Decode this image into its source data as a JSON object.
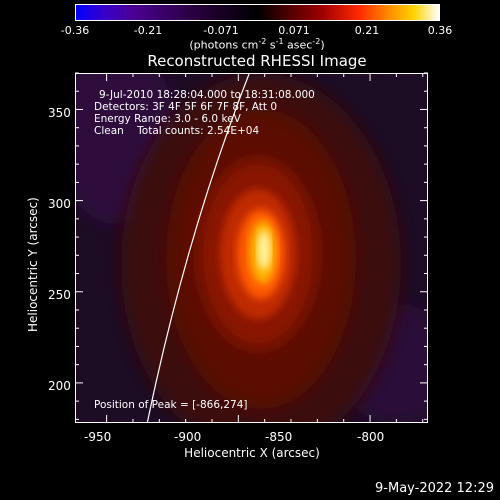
{
  "colorbar": {
    "ticks": [
      "-0.36",
      "-0.21",
      "-0.071",
      "0.071",
      "0.21",
      "0.36"
    ],
    "units_prefix": "(photons cm",
    "units_exp1": "-2",
    "units_mid": " s",
    "units_exp2": "-1",
    "units_mid2": " asec",
    "units_exp3": "-2",
    "units_suffix": ")"
  },
  "title": "Reconstructed RHESSI Image",
  "info": {
    "time": "9-Jul-2010 18:28:04.000 to 18:31:08.000",
    "detectors": "Detectors: 3F 4F 5F 6F 7F 8F, Att 0",
    "energy": "Energy Range: 3.0 - 6.0 keV",
    "clean": "Clean    Total counts: 2.54E+04",
    "peak": "Position of Peak = [-866,274]"
  },
  "axes": {
    "xlabel": "Heliocentric X (arcsec)",
    "ylabel": "Heliocentric Y (arcsec)",
    "xticks": [
      "-950",
      "-900",
      "-850",
      "-800"
    ],
    "yticks": [
      "350",
      "300",
      "250",
      "200"
    ],
    "xlim": [
      -962,
      -828
    ],
    "ylim": [
      178,
      370
    ]
  },
  "timestamp": "9-May-2022 12:29",
  "colors": {
    "background": "#000000",
    "text": "#ffffff"
  }
}
